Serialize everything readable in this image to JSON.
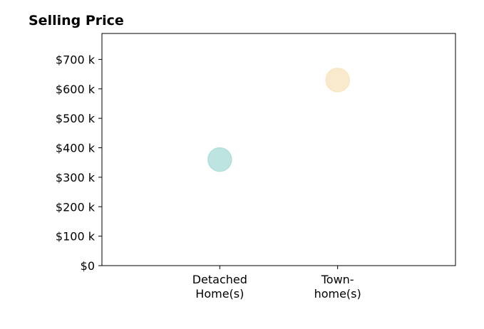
{
  "chart_data": {
    "type": "scatter",
    "title": "Selling Price",
    "xlabel": "",
    "ylabel": "",
    "categories": [
      [
        "Detached",
        "Home(s)"
      ],
      [
        "Town-",
        "home(s)"
      ]
    ],
    "yticks": [
      {
        "value": 0,
        "label": "$0"
      },
      {
        "value": 100,
        "label": "$100 k"
      },
      {
        "value": 200,
        "label": "$200 k"
      },
      {
        "value": 300,
        "label": "$300 k"
      },
      {
        "value": 400,
        "label": "$400 k"
      },
      {
        "value": 500,
        "label": "$500 k"
      },
      {
        "value": 600,
        "label": "$600 k"
      },
      {
        "value": 700,
        "label": "$700 k"
      }
    ],
    "ylim": [
      0,
      788
    ],
    "xlim": [
      -1,
      2
    ],
    "grid": false,
    "legend": "none",
    "series": [
      {
        "points": [
          {
            "category_index": 0,
            "y": 360,
            "color": "#b2dfdb"
          },
          {
            "category_index": 1,
            "y": 630,
            "color": "#f8e6c4"
          }
        ]
      }
    ]
  }
}
